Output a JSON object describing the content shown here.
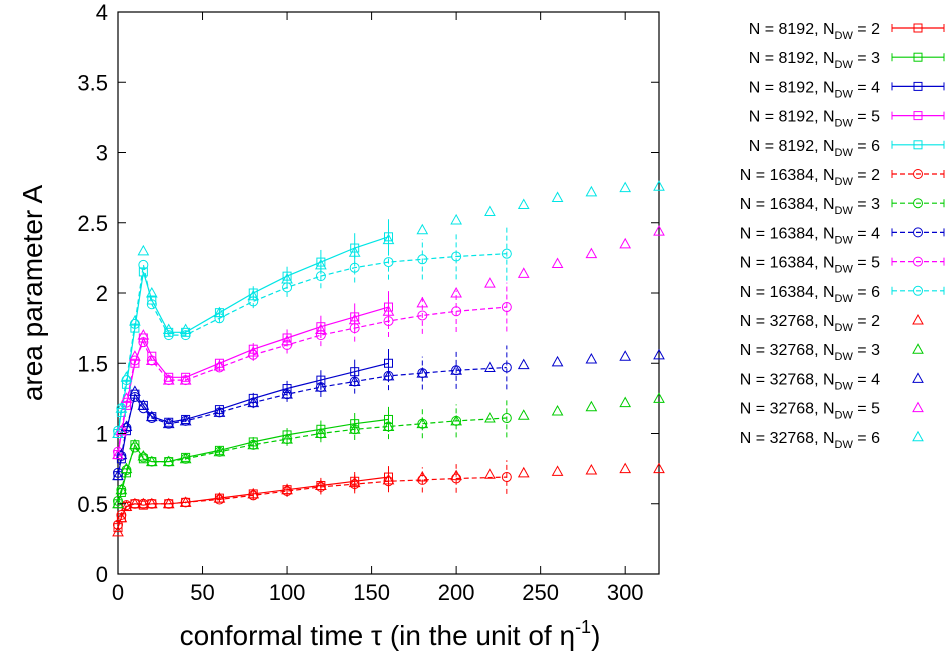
{
  "chart_data": {
    "type": "line",
    "xlabel": {
      "main": "conformal time τ (in the unit of η",
      "sup": "-1",
      "close": ")"
    },
    "ylabel": "area parameter A",
    "xlim": [
      0,
      320
    ],
    "ylim": [
      0,
      4
    ],
    "xticks": [
      "0",
      "50",
      "100",
      "150",
      "200",
      "250",
      "300"
    ],
    "yticks": [
      "0",
      "0.5",
      "1",
      "1.5",
      "2",
      "2.5",
      "3",
      "3.5",
      "4"
    ],
    "grid": false,
    "legend_position": "outside-right",
    "series": [
      {
        "name": "N = 8192, N",
        "sub": "DW",
        "tail": " = 2",
        "color": "#ff0000",
        "style": "solid-square",
        "x": [
          0,
          2,
          5,
          10,
          15,
          20,
          30,
          40,
          60,
          80,
          100,
          120,
          140,
          160
        ],
        "y": [
          0.33,
          0.4,
          0.48,
          0.5,
          0.49,
          0.5,
          0.5,
          0.51,
          0.54,
          0.57,
          0.6,
          0.63,
          0.66,
          0.69
        ]
      },
      {
        "name": "N = 8192, N",
        "sub": "DW",
        "tail": " = 3",
        "color": "#00cc00",
        "style": "solid-square",
        "x": [
          0,
          2,
          5,
          10,
          15,
          20,
          30,
          40,
          60,
          80,
          100,
          120,
          140,
          160
        ],
        "y": [
          0.5,
          0.58,
          0.72,
          0.92,
          0.82,
          0.8,
          0.8,
          0.83,
          0.88,
          0.94,
          0.99,
          1.03,
          1.07,
          1.1
        ]
      },
      {
        "name": "N = 8192, N",
        "sub": "DW",
        "tail": " = 4",
        "color": "#0000cc",
        "style": "solid-square",
        "x": [
          0,
          2,
          5,
          10,
          15,
          20,
          30,
          40,
          60,
          80,
          100,
          120,
          140,
          160
        ],
        "y": [
          0.7,
          0.82,
          1.02,
          1.28,
          1.2,
          1.12,
          1.08,
          1.1,
          1.17,
          1.25,
          1.32,
          1.38,
          1.44,
          1.5
        ]
      },
      {
        "name": "N = 8192, N",
        "sub": "DW",
        "tail": " = 5",
        "color": "#ff00ff",
        "style": "solid-square",
        "x": [
          0,
          2,
          5,
          10,
          15,
          20,
          30,
          40,
          60,
          80,
          100,
          120,
          140,
          160
        ],
        "y": [
          0.85,
          1.0,
          1.2,
          1.5,
          1.68,
          1.55,
          1.4,
          1.4,
          1.5,
          1.6,
          1.68,
          1.76,
          1.83,
          1.9
        ]
      },
      {
        "name": "N = 8192, N",
        "sub": "DW",
        "tail": " = 6",
        "color": "#00e5e5",
        "style": "solid-square",
        "x": [
          0,
          2,
          5,
          10,
          15,
          20,
          30,
          40,
          60,
          80,
          100,
          120,
          140,
          160
        ],
        "y": [
          1.0,
          1.15,
          1.35,
          1.75,
          2.15,
          1.95,
          1.72,
          1.72,
          1.86,
          2.0,
          2.12,
          2.22,
          2.32,
          2.4
        ]
      },
      {
        "name": "N = 16384, N",
        "sub": "DW",
        "tail": " = 2",
        "color": "#ff0000",
        "style": "dashed-circle",
        "x": [
          0,
          2,
          5,
          10,
          15,
          20,
          30,
          40,
          60,
          80,
          100,
          120,
          140,
          160,
          180,
          200,
          230
        ],
        "y": [
          0.35,
          0.42,
          0.49,
          0.5,
          0.5,
          0.5,
          0.5,
          0.51,
          0.53,
          0.56,
          0.59,
          0.62,
          0.64,
          0.66,
          0.67,
          0.68,
          0.69
        ]
      },
      {
        "name": "N = 16384, N",
        "sub": "DW",
        "tail": " = 3",
        "color": "#00cc00",
        "style": "dashed-circle",
        "x": [
          0,
          2,
          5,
          10,
          15,
          20,
          30,
          40,
          60,
          80,
          100,
          120,
          140,
          160,
          180,
          200,
          230
        ],
        "y": [
          0.52,
          0.6,
          0.74,
          0.9,
          0.83,
          0.8,
          0.8,
          0.82,
          0.87,
          0.92,
          0.96,
          1.0,
          1.03,
          1.05,
          1.07,
          1.09,
          1.11
        ]
      },
      {
        "name": "N = 16384, N",
        "sub": "DW",
        "tail": " = 4",
        "color": "#0000cc",
        "style": "dashed-circle",
        "x": [
          0,
          2,
          5,
          10,
          15,
          20,
          30,
          40,
          60,
          80,
          100,
          120,
          140,
          160,
          180,
          200,
          230
        ],
        "y": [
          0.72,
          0.84,
          1.04,
          1.26,
          1.18,
          1.11,
          1.07,
          1.09,
          1.15,
          1.22,
          1.28,
          1.33,
          1.37,
          1.41,
          1.43,
          1.45,
          1.47
        ]
      },
      {
        "name": "N = 16384, N",
        "sub": "DW",
        "tail": " = 5",
        "color": "#ff00ff",
        "style": "dashed-circle",
        "x": [
          0,
          2,
          5,
          10,
          15,
          20,
          30,
          40,
          60,
          80,
          100,
          120,
          140,
          160,
          180,
          200,
          230
        ],
        "y": [
          0.87,
          1.02,
          1.22,
          1.52,
          1.65,
          1.52,
          1.38,
          1.38,
          1.47,
          1.56,
          1.63,
          1.7,
          1.75,
          1.8,
          1.84,
          1.87,
          1.9
        ]
      },
      {
        "name": "N = 16384, N",
        "sub": "DW",
        "tail": " = 6",
        "color": "#00e5e5",
        "style": "dashed-circle",
        "x": [
          0,
          2,
          5,
          10,
          15,
          20,
          30,
          40,
          60,
          80,
          100,
          120,
          140,
          160,
          180,
          200,
          230
        ],
        "y": [
          1.02,
          1.18,
          1.38,
          1.78,
          2.2,
          1.92,
          1.7,
          1.7,
          1.82,
          1.94,
          2.04,
          2.12,
          2.18,
          2.22,
          2.24,
          2.26,
          2.28
        ]
      },
      {
        "name": "N = 32768, N",
        "sub": "DW",
        "tail": " = 2",
        "color": "#ff0000",
        "style": "triangle",
        "x": [
          0,
          2,
          5,
          10,
          15,
          20,
          30,
          40,
          60,
          80,
          100,
          120,
          140,
          160,
          180,
          200,
          220,
          240,
          260,
          280,
          300,
          320
        ],
        "y": [
          0.3,
          0.4,
          0.48,
          0.5,
          0.5,
          0.5,
          0.5,
          0.51,
          0.54,
          0.57,
          0.6,
          0.63,
          0.65,
          0.67,
          0.69,
          0.7,
          0.71,
          0.72,
          0.73,
          0.74,
          0.75,
          0.75
        ]
      },
      {
        "name": "N = 32768, N",
        "sub": "DW",
        "tail": " = 3",
        "color": "#00cc00",
        "style": "triangle",
        "x": [
          0,
          2,
          5,
          10,
          15,
          20,
          30,
          40,
          60,
          80,
          100,
          120,
          140,
          160,
          180,
          200,
          220,
          240,
          260,
          280,
          300,
          320
        ],
        "y": [
          0.5,
          0.6,
          0.75,
          0.92,
          0.84,
          0.8,
          0.8,
          0.82,
          0.87,
          0.92,
          0.96,
          1.0,
          1.03,
          1.05,
          1.07,
          1.09,
          1.11,
          1.13,
          1.16,
          1.19,
          1.22,
          1.25
        ]
      },
      {
        "name": "N = 32768, N",
        "sub": "DW",
        "tail": " = 4",
        "color": "#0000cc",
        "style": "triangle",
        "x": [
          0,
          2,
          5,
          10,
          15,
          20,
          30,
          40,
          60,
          80,
          100,
          120,
          140,
          160,
          180,
          200,
          220,
          240,
          260,
          280,
          300,
          320
        ],
        "y": [
          0.7,
          0.85,
          1.05,
          1.3,
          1.2,
          1.12,
          1.07,
          1.09,
          1.15,
          1.22,
          1.28,
          1.33,
          1.37,
          1.41,
          1.43,
          1.45,
          1.47,
          1.49,
          1.51,
          1.53,
          1.55,
          1.56
        ]
      },
      {
        "name": "N = 32768, N",
        "sub": "DW",
        "tail": " = 5",
        "color": "#ff00ff",
        "style": "triangle",
        "x": [
          0,
          2,
          5,
          10,
          15,
          20,
          30,
          40,
          60,
          80,
          100,
          120,
          140,
          160,
          180,
          200,
          220,
          240,
          260,
          280,
          300,
          320
        ],
        "y": [
          0.85,
          1.02,
          1.25,
          1.55,
          1.7,
          1.52,
          1.38,
          1.38,
          1.48,
          1.58,
          1.66,
          1.74,
          1.81,
          1.87,
          1.93,
          2.0,
          2.07,
          2.14,
          2.21,
          2.28,
          2.35,
          2.44
        ]
      },
      {
        "name": "N = 32768, N",
        "sub": "DW",
        "tail": " = 6",
        "color": "#00e5e5",
        "style": "triangle",
        "x": [
          0,
          2,
          5,
          10,
          15,
          20,
          30,
          40,
          60,
          80,
          100,
          120,
          140,
          160,
          180,
          200,
          220,
          240,
          260,
          280,
          300,
          320
        ],
        "y": [
          1.0,
          1.18,
          1.4,
          1.8,
          2.3,
          2.0,
          1.74,
          1.74,
          1.86,
          1.98,
          2.1,
          2.2,
          2.29,
          2.38,
          2.45,
          2.52,
          2.58,
          2.63,
          2.68,
          2.72,
          2.75,
          2.76
        ]
      }
    ]
  }
}
